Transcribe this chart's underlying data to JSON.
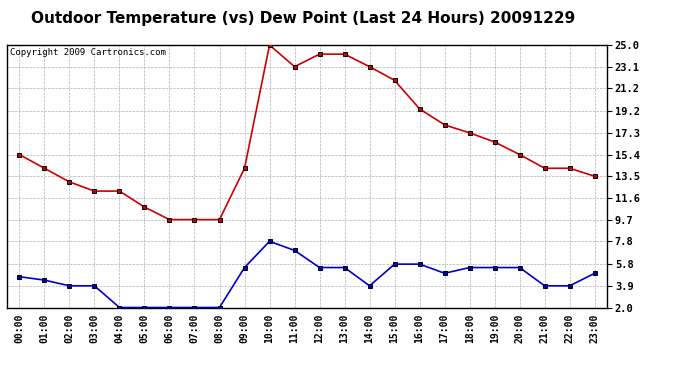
{
  "title": "Outdoor Temperature (vs) Dew Point (Last 24 Hours) 20091229",
  "copyright": "Copyright 2009 Cartronics.com",
  "hours": [
    "00:00",
    "01:00",
    "02:00",
    "03:00",
    "04:00",
    "05:00",
    "06:00",
    "07:00",
    "08:00",
    "09:00",
    "10:00",
    "11:00",
    "12:00",
    "13:00",
    "14:00",
    "15:00",
    "16:00",
    "17:00",
    "18:00",
    "19:00",
    "20:00",
    "21:00",
    "22:00",
    "23:00"
  ],
  "temp_red": [
    15.4,
    14.2,
    13.0,
    12.2,
    12.2,
    10.8,
    9.7,
    9.7,
    9.7,
    14.2,
    25.0,
    23.1,
    24.2,
    24.2,
    23.1,
    21.9,
    19.4,
    18.0,
    17.3,
    16.5,
    15.4,
    14.2,
    14.2,
    13.5
  ],
  "dew_blue": [
    4.7,
    4.4,
    3.9,
    3.9,
    2.0,
    2.0,
    2.0,
    2.0,
    2.0,
    5.5,
    7.8,
    7.0,
    5.5,
    5.5,
    3.9,
    5.8,
    5.8,
    5.0,
    5.5,
    5.5,
    5.5,
    3.9,
    3.9,
    5.0
  ],
  "ylim": [
    2.0,
    25.0
  ],
  "yticks": [
    2.0,
    3.9,
    5.8,
    7.8,
    9.7,
    11.6,
    13.5,
    15.4,
    17.3,
    19.2,
    21.2,
    23.1,
    25.0
  ],
  "temp_color": "#cc0000",
  "dew_color": "#0000cc",
  "bg_color": "#ffffff",
  "grid_color": "#b0b0b0",
  "title_fontsize": 11,
  "marker": "s",
  "marker_color": "#000000",
  "marker_size": 3
}
